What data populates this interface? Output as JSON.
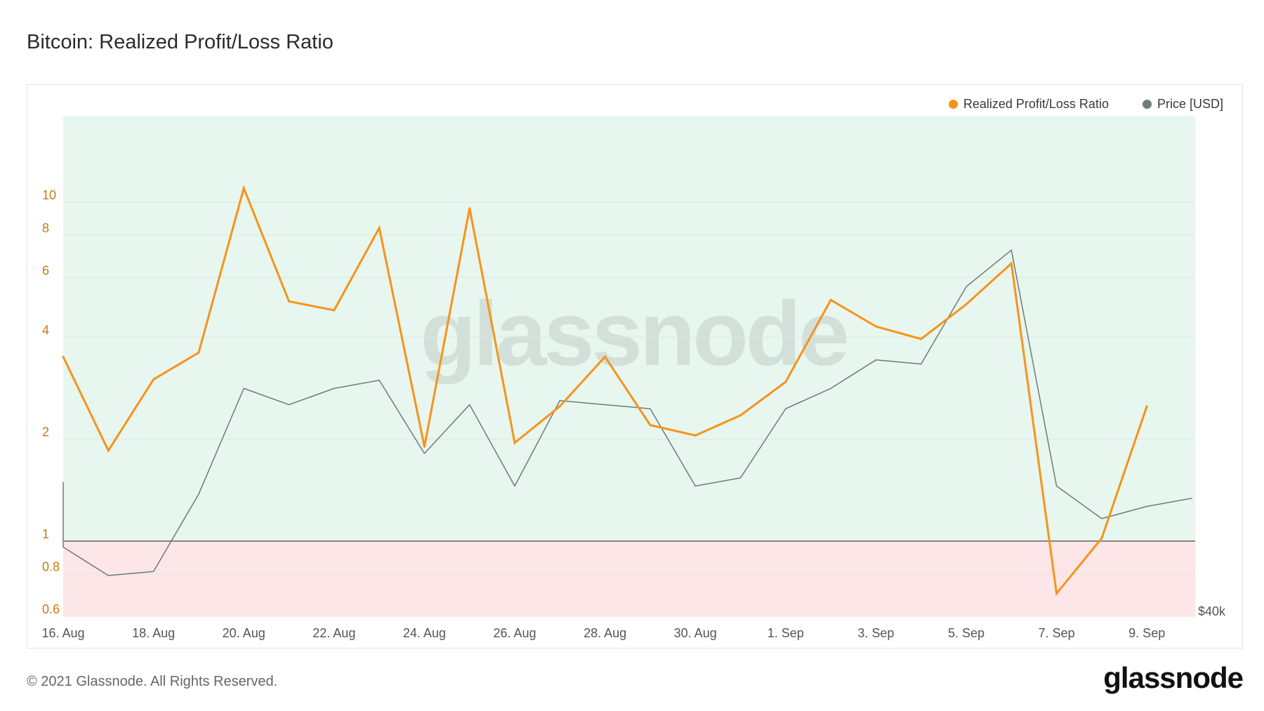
{
  "title": "Bitcoin: Realized Profit/Loss Ratio",
  "watermark": "glassnode",
  "footer": {
    "copyright": "© 2021 Glassnode. All Rights Reserved.",
    "brand": "glassnode"
  },
  "colors": {
    "ratio": "#f7931a",
    "price": "#6e7b77",
    "profit_zone": "#e7f6ee",
    "loss_zone": "#fde6e7",
    "threshold": "#333333",
    "axis_text": "#c97a12"
  },
  "chart_data": {
    "type": "line",
    "title": "Bitcoin: Realized Profit/Loss Ratio",
    "x": [
      "2021-08-16",
      "2021-08-17",
      "2021-08-18",
      "2021-08-19",
      "2021-08-20",
      "2021-08-21",
      "2021-08-22",
      "2021-08-23",
      "2021-08-24",
      "2021-08-25",
      "2021-08-26",
      "2021-08-27",
      "2021-08-28",
      "2021-08-29",
      "2021-08-30",
      "2021-08-31",
      "2021-09-01",
      "2021-09-02",
      "2021-09-03",
      "2021-09-04",
      "2021-09-05",
      "2021-09-06",
      "2021-09-07",
      "2021-09-08",
      "2021-09-09"
    ],
    "x_tick_labels": [
      "16. Aug",
      "18. Aug",
      "20. Aug",
      "22. Aug",
      "24. Aug",
      "26. Aug",
      "28. Aug",
      "30. Aug",
      "1. Sep",
      "3. Sep",
      "5. Sep",
      "7. Sep",
      "9. Sep"
    ],
    "y_ticks": [
      0.6,
      0.8,
      1,
      2,
      4,
      6,
      8,
      10
    ],
    "y_scale": "log",
    "ylim": [
      0.6,
      18
    ],
    "threshold": 1,
    "zones": {
      "profit": "above 1",
      "loss": "below 1"
    },
    "price_axis_label": "$40k",
    "series": [
      {
        "name": "Realized Profit/Loss Ratio",
        "axis": "left",
        "values": [
          3.5,
          1.85,
          3.0,
          3.6,
          11.0,
          5.1,
          4.8,
          8.4,
          1.9,
          9.6,
          1.95,
          2.5,
          3.5,
          2.2,
          2.05,
          2.35,
          2.95,
          5.15,
          4.3,
          3.95,
          5.0,
          6.6,
          0.7,
          1.02,
          2.5
        ]
      },
      {
        "name": "Price [USD]",
        "axis": "right",
        "x": [
          "2021-08-15",
          "2021-08-16",
          "2021-08-17",
          "2021-08-18",
          "2021-08-19",
          "2021-08-20",
          "2021-08-21",
          "2021-08-22",
          "2021-08-23",
          "2021-08-24",
          "2021-08-25",
          "2021-08-26",
          "2021-08-27",
          "2021-08-28",
          "2021-08-29",
          "2021-08-30",
          "2021-08-31",
          "2021-09-01",
          "2021-09-02",
          "2021-09-03",
          "2021-09-04",
          "2021-09-05",
          "2021-09-06",
          "2021-09-07",
          "2021-09-08",
          "2021-09-09",
          "2021-09-10"
        ],
        "values": [
          47000,
          45400,
          44700,
          44800,
          46700,
          49300,
          48900,
          49300,
          49500,
          47700,
          48900,
          46900,
          49000,
          48900,
          48800,
          46900,
          47100,
          48800,
          49300,
          50000,
          49900,
          51800,
          52700,
          46900,
          46100,
          46400,
          46600
        ]
      }
    ]
  }
}
